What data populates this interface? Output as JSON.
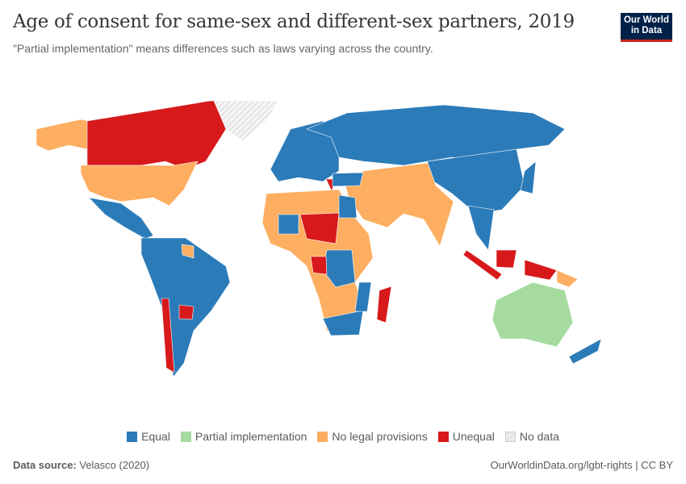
{
  "header": {
    "title": "Age of consent for same-sex and different-sex partners, 2019",
    "subtitle": "\"Partial implementation\" means differences such as laws varying across the country.",
    "logo_line1": "Our World",
    "logo_line2": "in Data"
  },
  "categories": {
    "equal": {
      "label": "Equal",
      "color": "#2b7bb9"
    },
    "partial": {
      "label": "Partial implementation",
      "color": "#a6dba0"
    },
    "none": {
      "label": "No legal provisions",
      "color": "#fdae61"
    },
    "unequal": {
      "label": "Unequal",
      "color": "#d7191c"
    },
    "nodata": {
      "label": "No data",
      "color": "#eeeeee"
    }
  },
  "map_data": {
    "alaska": "none",
    "canada": "unequal",
    "greenland": "nodata",
    "usa": "none",
    "mexico-central-america": "equal",
    "south-america": "equal",
    "guianas": "none",
    "chile": "unequal",
    "paraguay": "unequal",
    "europe": "equal",
    "greece": "unequal",
    "russia": "equal",
    "east-asia": "equal",
    "japan": "equal",
    "middle-south-asia": "none",
    "turkey": "equal",
    "southeast-asia": "equal",
    "africa": "none",
    "egypt": "equal",
    "sahel": "unequal",
    "mali": "equal",
    "central-africa": "equal",
    "gabon-cameroon": "unequal",
    "southern-africa": "equal",
    "mozambique": "equal",
    "madagascar": "unequal",
    "australia": "partial",
    "sumatra-java": "unequal",
    "borneo": "unequal",
    "west-papua": "unequal",
    "papua-new-guinea": "none",
    "new-zealand": "equal"
  },
  "footer": {
    "source_label": "Data source:",
    "source_value": "Velasco (2020)",
    "credit": "OurWorldinData.org/lgbt-rights | CC BY"
  }
}
